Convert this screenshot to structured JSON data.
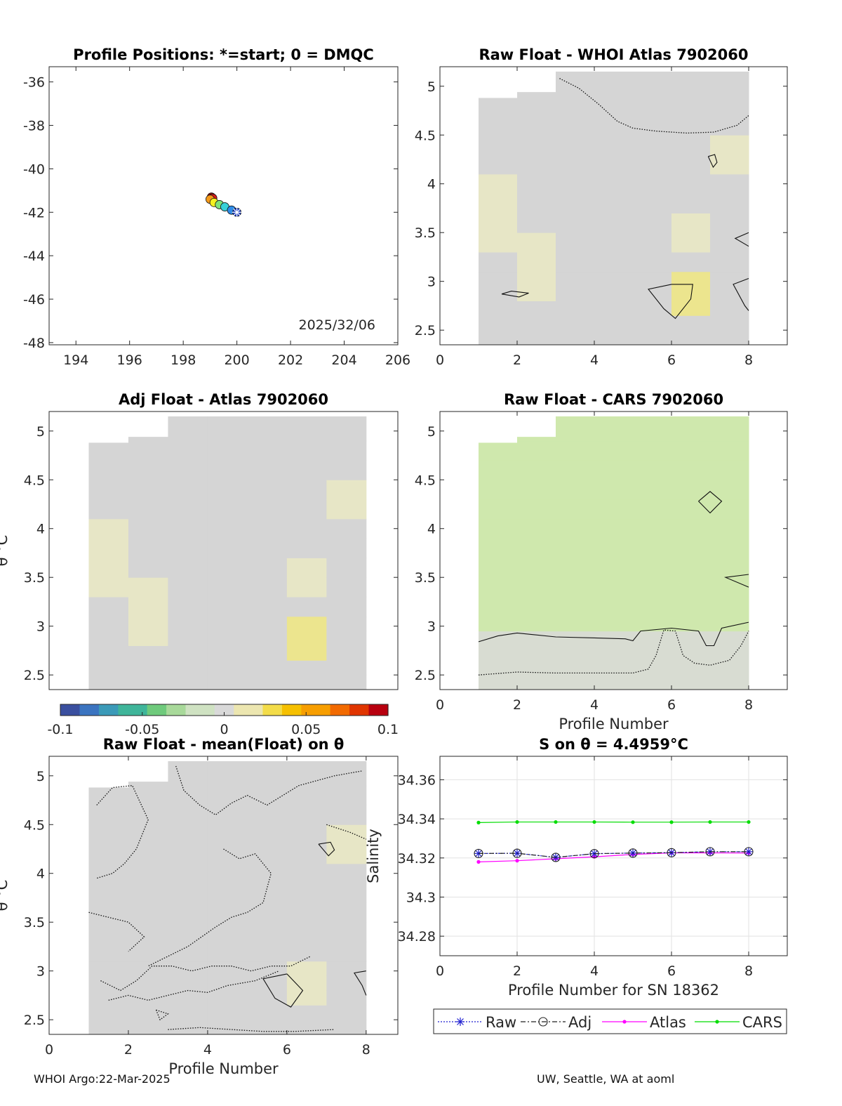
{
  "footer": {
    "left": "WHOI Argo:22-Mar-2025",
    "right": "UW, Seattle, WA at aoml"
  },
  "colors": {
    "field_gray": "#d5d5d5",
    "field_yellow": "#e7e6c6",
    "field_yellow_strong": "#ece58e",
    "field_green": "#cfe8ad",
    "raw": "#1f1fd0",
    "adj": "#222222",
    "atlas": "#ff00ff",
    "cars": "#00dd00"
  },
  "chart_data": [
    {
      "id": "positions",
      "type": "scatter",
      "title": "Profile Positions: *=start; 0 = DMQC",
      "xlim": [
        193,
        206
      ],
      "ylim": [
        -48.1,
        -35.3
      ],
      "xticks": [
        "194",
        "196",
        "198",
        "200",
        "202",
        "204",
        "206"
      ],
      "yticks": [
        "-36",
        "-38",
        "-40",
        "-42",
        "-44",
        "-46",
        "-48"
      ],
      "annotation": "2025/32/06",
      "points": [
        {
          "lon": 200.0,
          "lat": -42.0,
          "color": "#2040c0",
          "start": true
        },
        {
          "lon": 199.8,
          "lat": -41.9,
          "color": "#2e8ce8"
        },
        {
          "lon": 199.55,
          "lat": -41.75,
          "color": "#38d0d8"
        },
        {
          "lon": 199.35,
          "lat": -41.65,
          "color": "#7ee27a"
        },
        {
          "lon": 199.15,
          "lat": -41.55,
          "color": "#f4f020"
        },
        {
          "lon": 199.0,
          "lat": -41.4,
          "color": "#f59a1a"
        },
        {
          "lon": 199.1,
          "lat": -41.35,
          "color": "#d81818"
        },
        {
          "lon": 199.05,
          "lat": -41.3,
          "color": "#8a0e0e"
        }
      ]
    },
    {
      "id": "raw-atlas",
      "type": "heatmap",
      "title": "Raw Float - WHOI Atlas  7902060",
      "xlim": [
        0,
        9
      ],
      "ylim": [
        2.35,
        5.2
      ],
      "xticks": [
        "0",
        "2",
        "4",
        "6",
        "8"
      ],
      "yticks": [
        "2.5",
        "3",
        "3.5",
        "4",
        "4.5",
        "5"
      ],
      "xlabel": "",
      "ylabel": ""
    },
    {
      "id": "adj-atlas",
      "type": "heatmap",
      "title": "Adj Float - Atlas  7902060",
      "xlim": [
        0,
        8.8
      ],
      "ylim": [
        2.35,
        5.2
      ],
      "xticks": [],
      "yticks": [
        "2.5",
        "3",
        "3.5",
        "4",
        "4.5",
        "5"
      ],
      "xlabel": "",
      "ylabel": "θ °C"
    },
    {
      "id": "raw-cars",
      "type": "heatmap",
      "title": "Raw Float - CARS  7902060",
      "xlim": [
        0,
        9
      ],
      "ylim": [
        2.35,
        5.2
      ],
      "xticks": [
        "0",
        "2",
        "4",
        "6",
        "8"
      ],
      "yticks": [
        "2.5",
        "3",
        "3.5",
        "4",
        "4.5",
        "5"
      ],
      "xlabel": "Profile Number",
      "ylabel": ""
    },
    {
      "id": "colorbar",
      "type": "heatmap",
      "range": [
        -0.1,
        0.1
      ],
      "ticks": [
        "-0.1",
        "-0.05",
        "0",
        "0.05",
        "0.1"
      ]
    },
    {
      "id": "raw-mean",
      "type": "heatmap",
      "title": "Raw Float - mean(Float) on θ",
      "xlim": [
        0,
        8.8
      ],
      "ylim": [
        2.35,
        5.2
      ],
      "xticks": [
        "0",
        "2",
        "4",
        "6",
        "8"
      ],
      "yticks": [
        "2.5",
        "3",
        "3.5",
        "4",
        "4.5",
        "5"
      ],
      "xlabel": "Profile Number",
      "ylabel": "θ °C"
    },
    {
      "id": "salinity",
      "type": "line",
      "title": "S on θ = 4.4959°C",
      "xlim": [
        0,
        9
      ],
      "ylim": [
        34.27,
        34.372
      ],
      "xticks": [
        "0",
        "2",
        "4",
        "6",
        "8"
      ],
      "yticks": [
        "34.28",
        "34.3",
        "34.32",
        "34.34",
        "34.36"
      ],
      "xlabel": "Profile Number for SN 18362",
      "ylabel": "Salinity",
      "grid": true,
      "legend": "bottom",
      "x": [
        1,
        2,
        3,
        4,
        5,
        6,
        7,
        8
      ],
      "series": [
        {
          "name": "Raw",
          "values": [
            34.3223,
            34.3224,
            34.3203,
            34.3222,
            34.3225,
            34.3227,
            34.3232,
            34.3232
          ]
        },
        {
          "name": "Adj",
          "values": [
            34.3223,
            34.3224,
            34.3203,
            34.3222,
            34.3225,
            34.3227,
            34.3232,
            34.3232
          ]
        },
        {
          "name": "Atlas",
          "values": [
            34.318,
            34.3186,
            34.3196,
            34.3206,
            34.3218,
            34.3226,
            34.3226,
            34.3225
          ]
        },
        {
          "name": "CARS",
          "values": [
            34.3381,
            34.3384,
            34.3384,
            34.3384,
            34.3383,
            34.3383,
            34.3384,
            34.3384
          ]
        }
      ]
    }
  ]
}
